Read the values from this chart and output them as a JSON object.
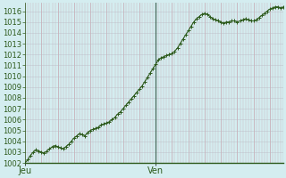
{
  "background_color": "#d4edf0",
  "plot_bg_color": "#d4edf0",
  "line_color": "#2d5a1b",
  "marker_color": "#2d5a1b",
  "grid_minor_color": "#c0c8d0",
  "grid_major_color": "#c8b0b8",
  "divider_color": "#4a6a5a",
  "ylim": [
    1002,
    1016.8
  ],
  "yticks": [
    1002,
    1003,
    1004,
    1005,
    1006,
    1007,
    1008,
    1009,
    1010,
    1011,
    1012,
    1013,
    1014,
    1015,
    1016
  ],
  "xtick_labels": [
    "Jeu",
    "Ven"
  ],
  "xtick_positions": [
    0,
    48
  ],
  "n_points": 96,
  "ven_x": 48,
  "y_values": [
    1002.0,
    1002.3,
    1002.7,
    1003.0,
    1003.2,
    1003.1,
    1003.0,
    1002.9,
    1003.1,
    1003.3,
    1003.5,
    1003.6,
    1003.5,
    1003.4,
    1003.3,
    1003.5,
    1003.7,
    1004.0,
    1004.3,
    1004.5,
    1004.7,
    1004.6,
    1004.5,
    1004.8,
    1005.0,
    1005.1,
    1005.2,
    1005.3,
    1005.5,
    1005.6,
    1005.7,
    1005.8,
    1006.0,
    1006.2,
    1006.5,
    1006.7,
    1007.0,
    1007.3,
    1007.6,
    1007.9,
    1008.2,
    1008.5,
    1008.8,
    1009.1,
    1009.5,
    1009.9,
    1010.3,
    1010.7,
    1011.1,
    1011.5,
    1011.7,
    1011.8,
    1011.9,
    1012.0,
    1012.1,
    1012.3,
    1012.6,
    1013.0,
    1013.4,
    1013.8,
    1014.2,
    1014.6,
    1015.0,
    1015.3,
    1015.5,
    1015.7,
    1015.8,
    1015.7,
    1015.5,
    1015.3,
    1015.2,
    1015.1,
    1015.0,
    1014.9,
    1015.0,
    1015.0,
    1015.1,
    1015.1,
    1015.0,
    1015.1,
    1015.2,
    1015.3,
    1015.2,
    1015.1,
    1015.1,
    1015.2,
    1015.4,
    1015.6,
    1015.8,
    1016.0,
    1016.2,
    1016.3,
    1016.4,
    1016.4,
    1016.3,
    1016.4
  ],
  "tick_fontsize": 6,
  "label_fontsize": 7,
  "axis_color": "#2d5a1b"
}
